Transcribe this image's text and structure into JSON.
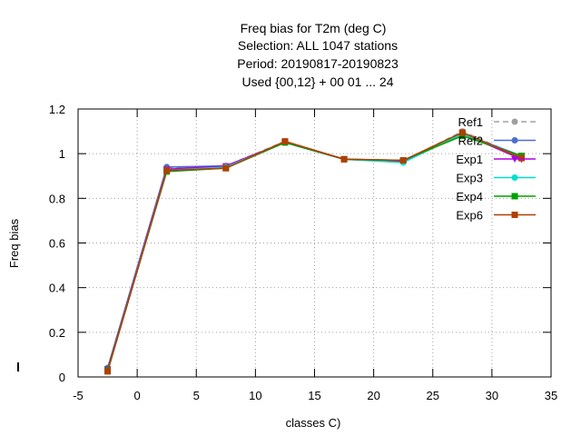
{
  "chart_data": {
    "type": "line",
    "title_lines": [
      "Freq bias  for T2m (deg C)",
      "Selection: ALL    1047 stations",
      "Period: 20190817-20190823",
      "Used {00,12} + 00 01 ... 24"
    ],
    "xlabel": "classes C)",
    "ylabel": "Freq bias",
    "xlim": [
      -5,
      35
    ],
    "ylim": [
      0,
      1.2
    ],
    "xticks": [
      "-5",
      "0",
      "5",
      "10",
      "15",
      "20",
      "25",
      "30",
      "35"
    ],
    "yticks": [
      "0",
      "0.2",
      "0.4",
      "0.6",
      "0.8",
      "1",
      "1.2"
    ],
    "grid": true,
    "legend_position": "top-right",
    "x": [
      -2.5,
      2.5,
      7.5,
      12.5,
      17.5,
      22.5,
      27.5,
      32.5
    ],
    "series": [
      {
        "name": "Ref1",
        "color": "#a0a0a0",
        "dashed": true,
        "marker": "circle",
        "values": [
          0.04,
          0.935,
          0.945,
          1.055,
          0.975,
          0.965,
          1.1,
          0.985
        ]
      },
      {
        "name": "Ref2",
        "color": "#4a6fd0",
        "dashed": false,
        "marker": "circle",
        "values": [
          0.04,
          0.94,
          0.945,
          1.05,
          0.975,
          0.965,
          1.09,
          0.99
        ]
      },
      {
        "name": "Exp1",
        "color": "#b000e0",
        "dashed": false,
        "marker": "triangle",
        "values": [
          0.035,
          0.93,
          0.945,
          1.05,
          0.975,
          0.965,
          1.09,
          0.975
        ]
      },
      {
        "name": "Exp3",
        "color": "#00e0d0",
        "dashed": false,
        "marker": "circle",
        "values": [
          0.03,
          0.925,
          0.94,
          1.05,
          0.975,
          0.96,
          1.09,
          0.985
        ]
      },
      {
        "name": "Exp4",
        "color": "#00a000",
        "dashed": false,
        "marker": "square",
        "values": [
          0.03,
          0.92,
          0.935,
          1.05,
          0.975,
          0.97,
          1.08,
          0.99
        ]
      },
      {
        "name": "Exp6",
        "color": "#b04000",
        "dashed": false,
        "marker": "square",
        "values": [
          0.025,
          0.925,
          0.935,
          1.055,
          0.975,
          0.97,
          1.095,
          0.98
        ]
      }
    ]
  }
}
